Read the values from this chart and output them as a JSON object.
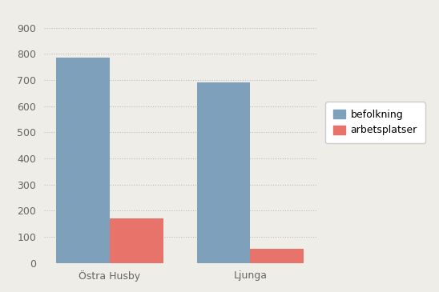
{
  "categories": [
    "Östra Husby",
    "Ljunga"
  ],
  "befolkning": [
    785,
    690
  ],
  "arbetsplatser": [
    170,
    55
  ],
  "bar_color_befolkning": "#7fa0bb",
  "bar_color_arbetsplatser": "#e8736a",
  "background_color": "#eeede8",
  "ylim": [
    0,
    950
  ],
  "yticks": [
    0,
    100,
    200,
    300,
    400,
    500,
    600,
    700,
    800,
    900
  ],
  "legend_labels": [
    "befolkning",
    "arbetsplatser"
  ],
  "bar_width": 0.38,
  "grid_color": "#bbbbbb",
  "font_color": "#666666",
  "tick_fontsize": 9,
  "xlabel_fontsize": 9
}
